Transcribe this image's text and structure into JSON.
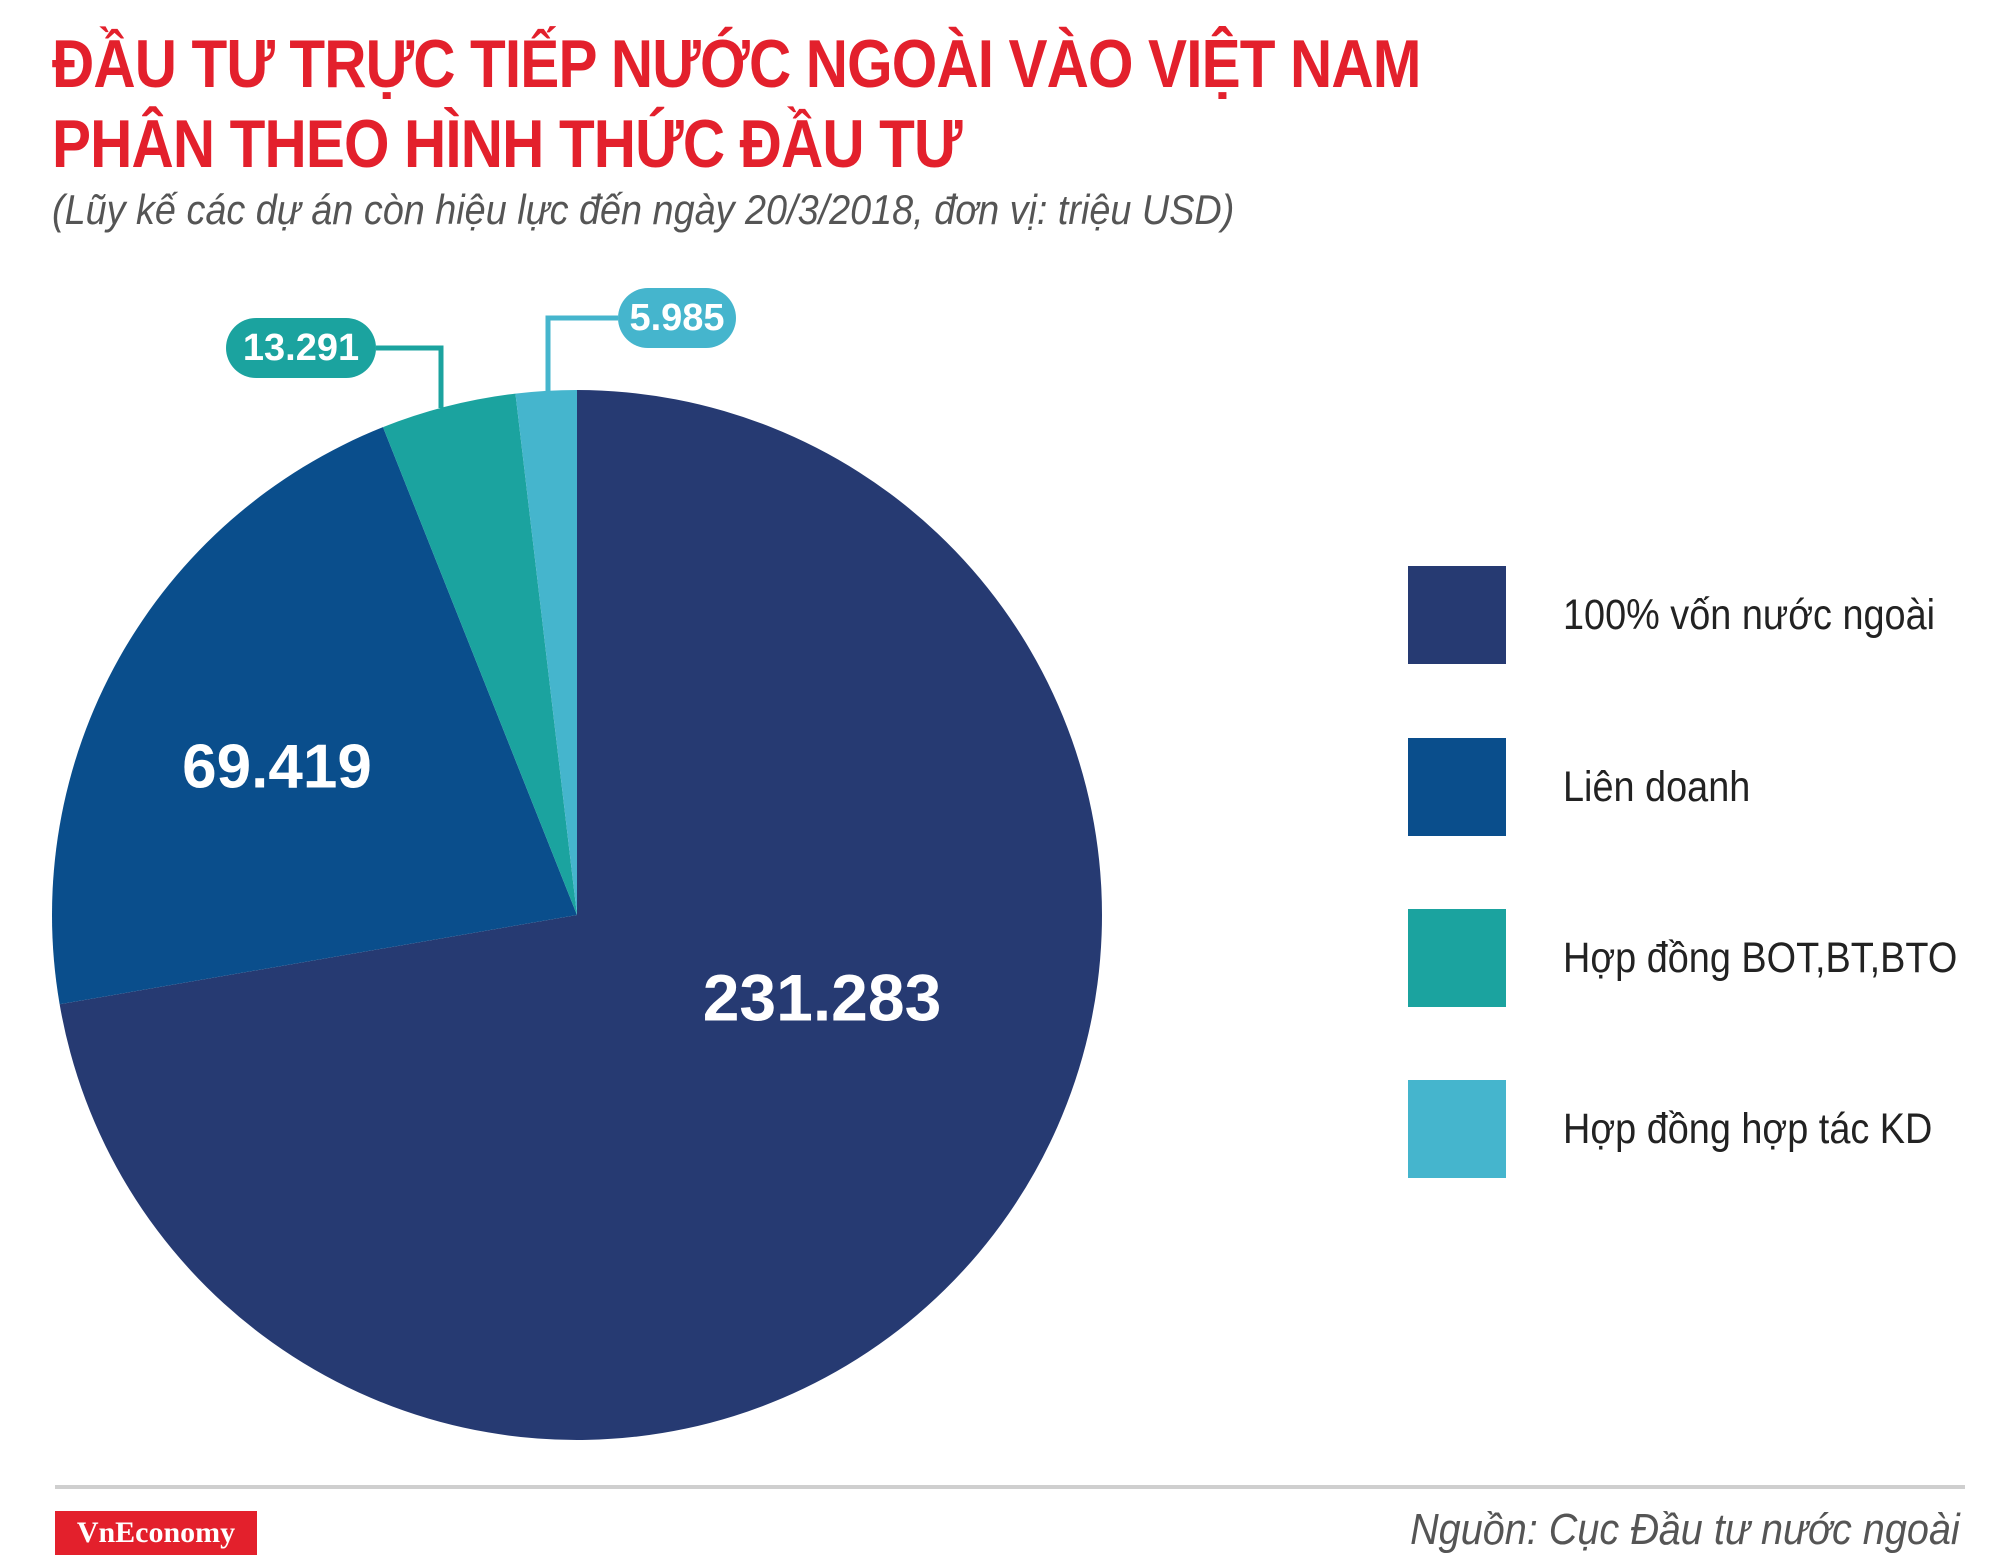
{
  "header": {
    "title_line1": "ĐẦU TƯ TRỰC TIẾP NƯỚC NGOÀI VÀO VIỆT NAM",
    "title_line2": "PHÂN THEO HÌNH THỨC ĐẦU TƯ",
    "subtitle": "(Lũy kế các dự án còn hiệu lực đến ngày 20/3/2018, đơn vị: triệu USD)"
  },
  "footer": {
    "logo": "VnEconomy",
    "source": "Nguồn: Cục Đầu tư nước ngoài"
  },
  "chart_data": {
    "type": "pie",
    "title": "ĐẦU TƯ TRỰC TIẾP NƯỚC NGOÀI VÀO VIỆT NAM PHÂN THEO HÌNH THỨC ĐẦU TƯ",
    "subtitle": "(Lũy kế các dự án còn hiệu lực đến ngày 20/3/2018, đơn vị: triệu USD)",
    "start_angle": "12 o'clock",
    "direction": "clockwise",
    "legend_position": "right",
    "slices": [
      {
        "label": "100% vốn nước ngoài",
        "value": 231283,
        "value_label": "231.283",
        "color": "#263a72"
      },
      {
        "label": "Liên doanh",
        "value": 69419,
        "value_label": "69.419",
        "color": "#0a4e8c"
      },
      {
        "label": "Hợp đồng BOT,BT,BTO",
        "value": 13291,
        "value_label": "13.291",
        "color": "#1ba39f"
      },
      {
        "label": "Hợp đồng hợp tác KD",
        "value": 5985,
        "value_label": "5.985",
        "color": "#45b5cd"
      }
    ]
  }
}
